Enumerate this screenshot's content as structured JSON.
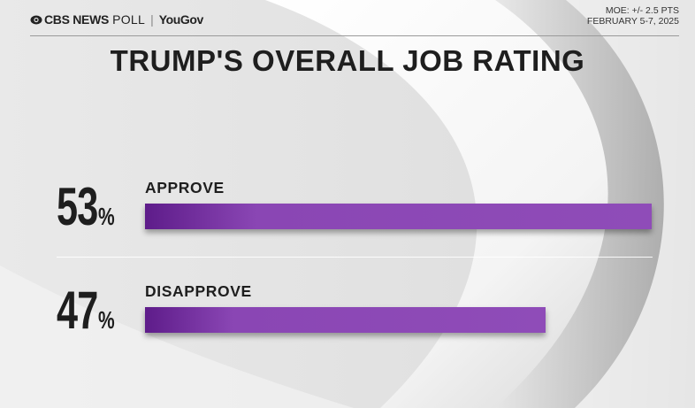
{
  "header": {
    "brand_news": "CBS NEWS",
    "brand_poll": "POLL",
    "brand_sep": "|",
    "brand_yougov": "YouGov",
    "moe_line1": "MOE: +/- 2.5 PTS",
    "moe_line2": "FEBRUARY 5-7, 2025"
  },
  "chart_data": {
    "type": "bar",
    "orientation": "horizontal",
    "title": "TRUMP'S OVERALL JOB RATING",
    "categories": [
      "APPROVE",
      "DISAPPROVE"
    ],
    "values": [
      53,
      47
    ],
    "value_labels": [
      "53",
      "47"
    ],
    "unit": "%",
    "bar_color": "#8f4cb8",
    "grid": false
  }
}
